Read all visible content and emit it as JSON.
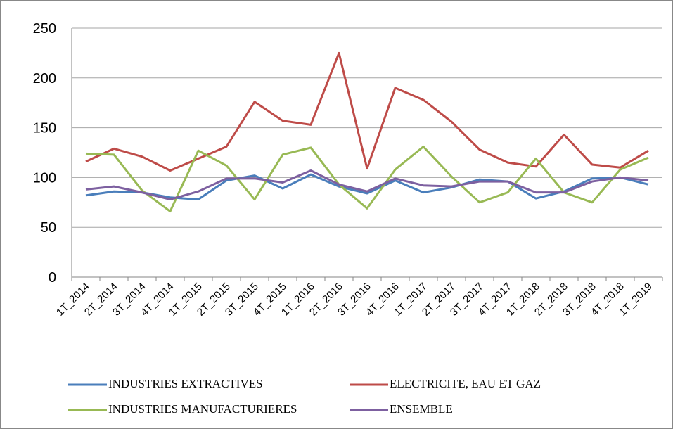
{
  "chart_data": {
    "type": "line",
    "categories": [
      "1T_2014",
      "2T_2014",
      "3T_2014",
      "4T_2014",
      "1T_2015",
      "2T_2015",
      "3T_2015",
      "4T_2015",
      "1T_2016",
      "2T_2016",
      "3T_2016",
      "4T_2016",
      "1T_2017",
      "2T_2017",
      "3T_2017",
      "4T_2017",
      "1T_2018",
      "2T_2018",
      "3T_2018",
      "4T_2018",
      "1T_2019"
    ],
    "series": [
      {
        "name": "INDUSTRIES EXTRACTIVES",
        "color": "#4a7ebb",
        "values": [
          82,
          86,
          85,
          80,
          78,
          97,
          102,
          89,
          103,
          91,
          84,
          97,
          85,
          90,
          98,
          96,
          79,
          86,
          99,
          100,
          93
        ]
      },
      {
        "name": "ELECTRICITE, EAU ET GAZ",
        "color": "#be4b48",
        "values": [
          116,
          129,
          121,
          107,
          119,
          131,
          176,
          157,
          153,
          225,
          109,
          190,
          178,
          156,
          128,
          115,
          111,
          143,
          113,
          110,
          127
        ]
      },
      {
        "name": "INDUSTRIES MANUFACTURIERES",
        "color": "#98b954",
        "values": [
          124,
          123,
          87,
          66,
          127,
          112,
          78,
          123,
          130,
          93,
          69,
          108,
          131,
          101,
          75,
          85,
          119,
          85,
          75,
          108,
          120
        ]
      },
      {
        "name": "ENSEMBLE",
        "color": "#7d60a0",
        "values": [
          88,
          91,
          85,
          78,
          86,
          99,
          99,
          95,
          107,
          93,
          86,
          99,
          92,
          91,
          96,
          96,
          85,
          85,
          96,
          100,
          97
        ]
      }
    ],
    "ylim": [
      0,
      250
    ],
    "yticks": [
      0,
      50,
      100,
      150,
      200,
      250
    ],
    "grid": true
  }
}
